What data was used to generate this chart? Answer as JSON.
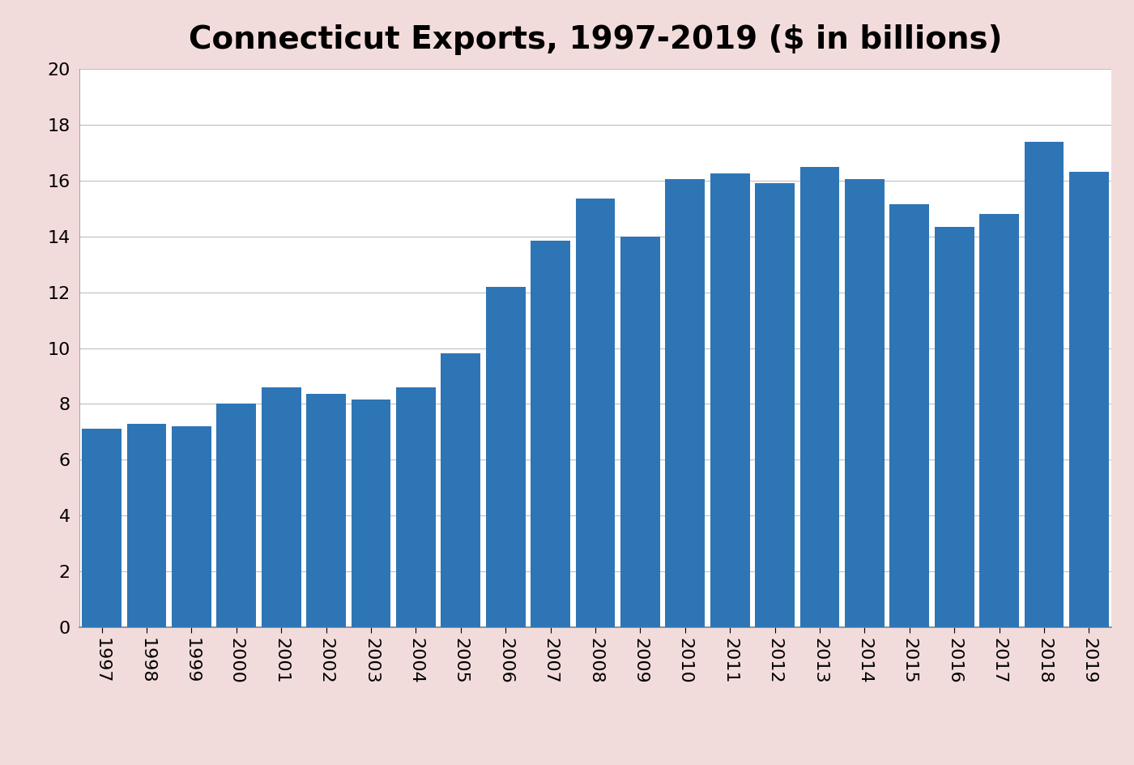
{
  "title": "Connecticut Exports, 1997-2019 ($ in billions)",
  "years": [
    1997,
    1998,
    1999,
    2000,
    2001,
    2002,
    2003,
    2004,
    2005,
    2006,
    2007,
    2008,
    2009,
    2010,
    2011,
    2012,
    2013,
    2014,
    2015,
    2016,
    2017,
    2018,
    2019
  ],
  "values": [
    7.1,
    7.3,
    7.2,
    8.0,
    8.6,
    8.35,
    8.15,
    8.6,
    9.8,
    12.2,
    13.85,
    15.35,
    14.0,
    16.05,
    16.25,
    15.9,
    16.5,
    16.05,
    15.15,
    14.35,
    14.8,
    17.4,
    16.3
  ],
  "bar_color": "#2E75B6",
  "background_color": "#F2DCDB",
  "plot_bg_color": "#FFFFFF",
  "ylim": [
    0,
    20
  ],
  "yticks": [
    0,
    2,
    4,
    6,
    8,
    10,
    12,
    14,
    16,
    18,
    20
  ],
  "title_fontsize": 28,
  "tick_fontsize": 16,
  "grid_color": "#BFBFBF",
  "bar_width": 0.88
}
